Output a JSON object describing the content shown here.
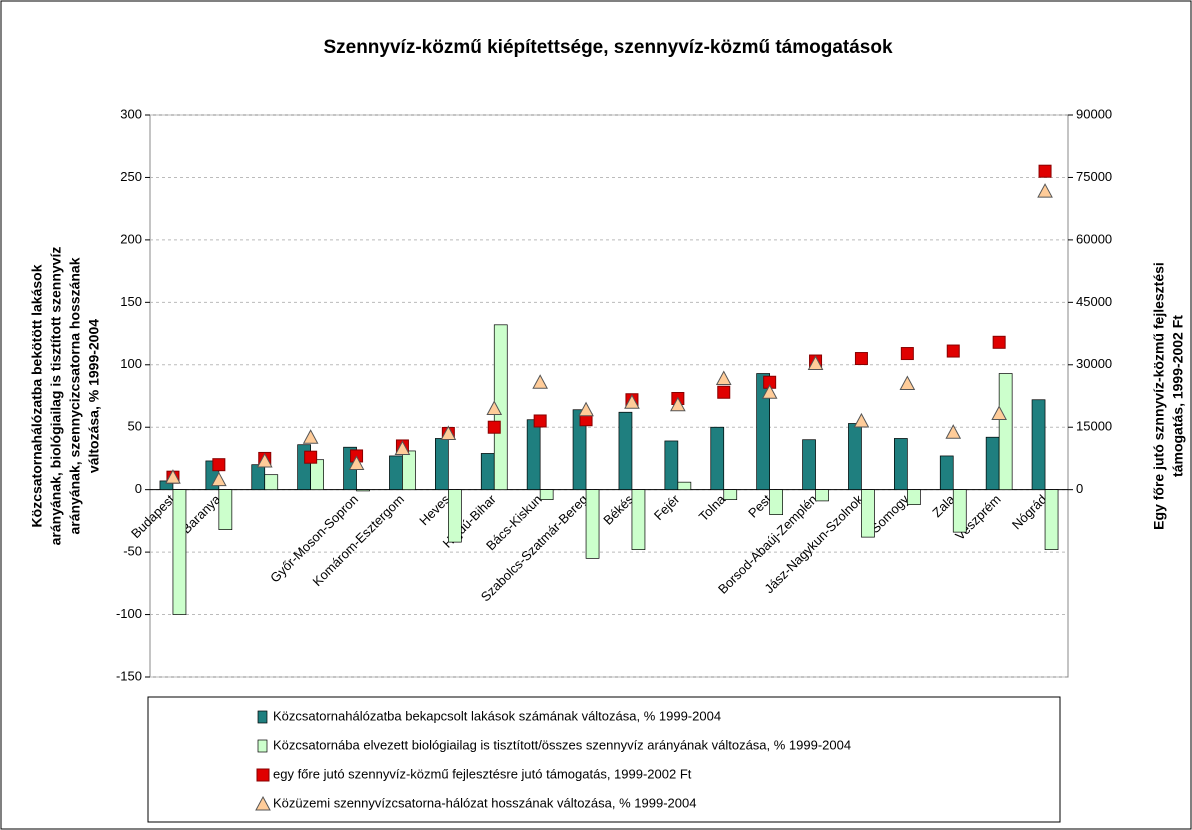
{
  "chart_data": {
    "type": "combo",
    "title": "Szennyvíz-közmű kiépítettsége, szennyvíz-közmű támogatások",
    "y_label": [
      "Közcsatornahálózatba bekötött lakások",
      "arányának, biológiailag is tisztított szennyvíz",
      "arányának, szennycizcsatorna hosszának",
      "változása, % 1999-2004"
    ],
    "y2_label": [
      "Egy főre jutó sznnyvíz-közmű fejlesztési",
      "támogatás, 1999-2002 Ft"
    ],
    "categories": [
      "Budapest",
      "Baranya",
      null,
      null,
      "Győr-Moson-Sopron",
      "Komárom-Esztergom",
      "Heves",
      "Hajdú-Bihar",
      "Bács-Kiskun",
      "Szabolcs-Szatmár-Bereg",
      "Békés",
      "Fejér",
      "Tolna",
      "Pest",
      "Borsod-Abaúj-Zemplén",
      "Jász-Nagykun-Szolnok",
      "Somogy",
      "Zala",
      "Veszprém",
      "Nógrád"
    ],
    "ylim": [
      -150,
      300
    ],
    "yticks": [
      -150,
      -100,
      -50,
      0,
      50,
      100,
      150,
      200,
      250,
      300
    ],
    "y2lim": [
      -45000,
      90000
    ],
    "y2ticks": [
      0,
      15000,
      30000,
      45000,
      60000,
      75000,
      90000
    ],
    "grid": true,
    "legend": "bottom",
    "series": [
      {
        "name": "Közcsatornahálózatba bekapcsolt lakások számának változása, % 1999-2004",
        "type": "bar",
        "color": "#1f7f7f",
        "values": [
          7,
          23,
          20,
          36,
          34,
          27,
          41,
          29,
          56,
          64,
          62,
          39,
          50,
          93,
          40,
          53,
          41,
          27,
          42,
          72
        ]
      },
      {
        "name": "Közcsatornába elvezett biológiailag is tisztított/összes szennyvíz arányának változása, % 1999-2004",
        "type": "bar",
        "color": "#ccffcc",
        "values": [
          -100,
          -32,
          12,
          24,
          -1,
          31,
          -42,
          132,
          -8,
          -55,
          -48,
          6,
          -8,
          -20,
          -9,
          -38,
          -12,
          -34,
          93,
          -48
        ]
      },
      {
        "name": "egy főre jutó szennyvíz-közmű fejlesztésre jutó támogatás, 1999-2002 Ft",
        "type": "square",
        "color": "#e00000",
        "axis": "y2",
        "values": [
          3000,
          6000,
          7500,
          7800,
          8100,
          10500,
          13500,
          15000,
          16500,
          16800,
          21600,
          21900,
          23400,
          25800,
          30900,
          31500,
          32700,
          33300,
          35400,
          76500
        ]
      },
      {
        "name": "Közüzemi szennyvízcsatorna-hálózat hosszának változása, % 1999-2004",
        "type": "triangle",
        "color": "#ffcc99",
        "values": [
          10,
          8,
          23,
          42,
          21,
          33,
          45,
          65,
          86,
          64,
          70,
          68,
          89,
          78,
          101,
          55,
          85,
          46,
          61,
          239
        ]
      }
    ]
  }
}
